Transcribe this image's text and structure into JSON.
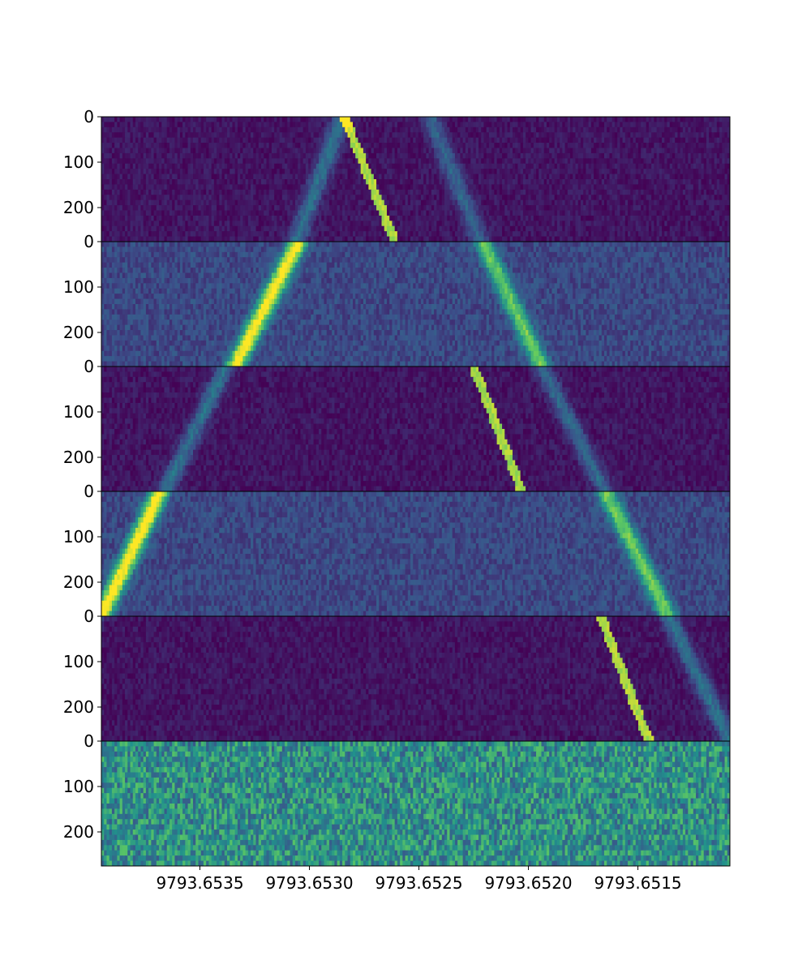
{
  "chart_data": {
    "type": "heatmap",
    "title": "",
    "xlabel": "",
    "ylabel": "",
    "colormap": "viridis",
    "colormap_stops": [
      "#440154",
      "#3b528b",
      "#21918c",
      "#5ec962",
      "#fde725"
    ],
    "x_axis": {
      "direction": "decreasing",
      "xlim": [
        9793.65395,
        9793.65108
      ],
      "ticks": [
        9793.6535,
        9793.653,
        9793.6525,
        9793.652,
        9793.6515
      ],
      "tick_labels": [
        "9793.6535",
        "9793.6530",
        "9793.6525",
        "9793.6520",
        "9793.6515"
      ]
    },
    "y_axis": {
      "ylim": [
        0,
        275
      ],
      "ticks": [
        0,
        100,
        200
      ],
      "tick_labels": [
        "0",
        "100",
        "200"
      ]
    },
    "panels": [
      {
        "panel": 1,
        "background": 0.06,
        "noise": 0.06,
        "features": [
          {
            "kind": "sharp",
            "x_at_y0": 9793.65284,
            "x_at_y275": 9793.65261,
            "width": 4e-05,
            "peak": 0.93
          },
          {
            "kind": "broad",
            "x_at_y0": 9793.65285,
            "x_at_y275": 9793.65306,
            "width": 5e-05,
            "peak": 0.34
          },
          {
            "kind": "broad",
            "x_at_y0": 9793.65245,
            "x_at_y275": 9793.65222,
            "width": 5e-05,
            "peak": 0.28
          }
        ]
      },
      {
        "panel": 2,
        "background": 0.22,
        "noise": 0.08,
        "features": [
          {
            "kind": "broad",
            "x_at_y0": 9793.65305,
            "x_at_y275": 9793.65334,
            "width": 5e-05,
            "peak": 0.92
          },
          {
            "kind": "broad",
            "x_at_y0": 9793.65221,
            "x_at_y275": 9793.65194,
            "width": 5e-05,
            "peak": 0.58
          }
        ]
      },
      {
        "panel": 3,
        "background": 0.06,
        "noise": 0.06,
        "features": [
          {
            "kind": "sharp",
            "x_at_y0": 9793.65225,
            "x_at_y275": 9793.65203,
            "width": 4e-05,
            "peak": 0.92
          },
          {
            "kind": "broad",
            "x_at_y0": 9793.65338,
            "x_at_y275": 9793.65366,
            "width": 5e-05,
            "peak": 0.34
          },
          {
            "kind": "broad",
            "x_at_y0": 9793.65194,
            "x_at_y275": 9793.65165,
            "width": 5e-05,
            "peak": 0.3
          }
        ]
      },
      {
        "panel": 4,
        "background": 0.22,
        "noise": 0.08,
        "features": [
          {
            "kind": "broad",
            "x_at_y0": 9793.65368,
            "x_at_y275": 9793.65395,
            "width": 5e-05,
            "peak": 0.92
          },
          {
            "kind": "broad",
            "x_at_y0": 9793.65165,
            "x_at_y275": 9793.65136,
            "width": 5e-05,
            "peak": 0.6
          }
        ]
      },
      {
        "panel": 5,
        "background": 0.06,
        "noise": 0.06,
        "features": [
          {
            "kind": "sharp",
            "x_at_y0": 9793.65167,
            "x_at_y275": 9793.65145,
            "width": 4e-05,
            "peak": 0.93
          },
          {
            "kind": "broad",
            "x_at_y0": 9793.65398,
            "x_at_y275": 9793.65425,
            "width": 5e-05,
            "peak": 0.3
          },
          {
            "kind": "broad",
            "x_at_y0": 9793.65136,
            "x_at_y275": 9793.65108,
            "width": 5e-05,
            "peak": 0.34
          }
        ]
      },
      {
        "panel": 6,
        "background": 0.5,
        "noise": 0.22,
        "features": []
      }
    ]
  }
}
